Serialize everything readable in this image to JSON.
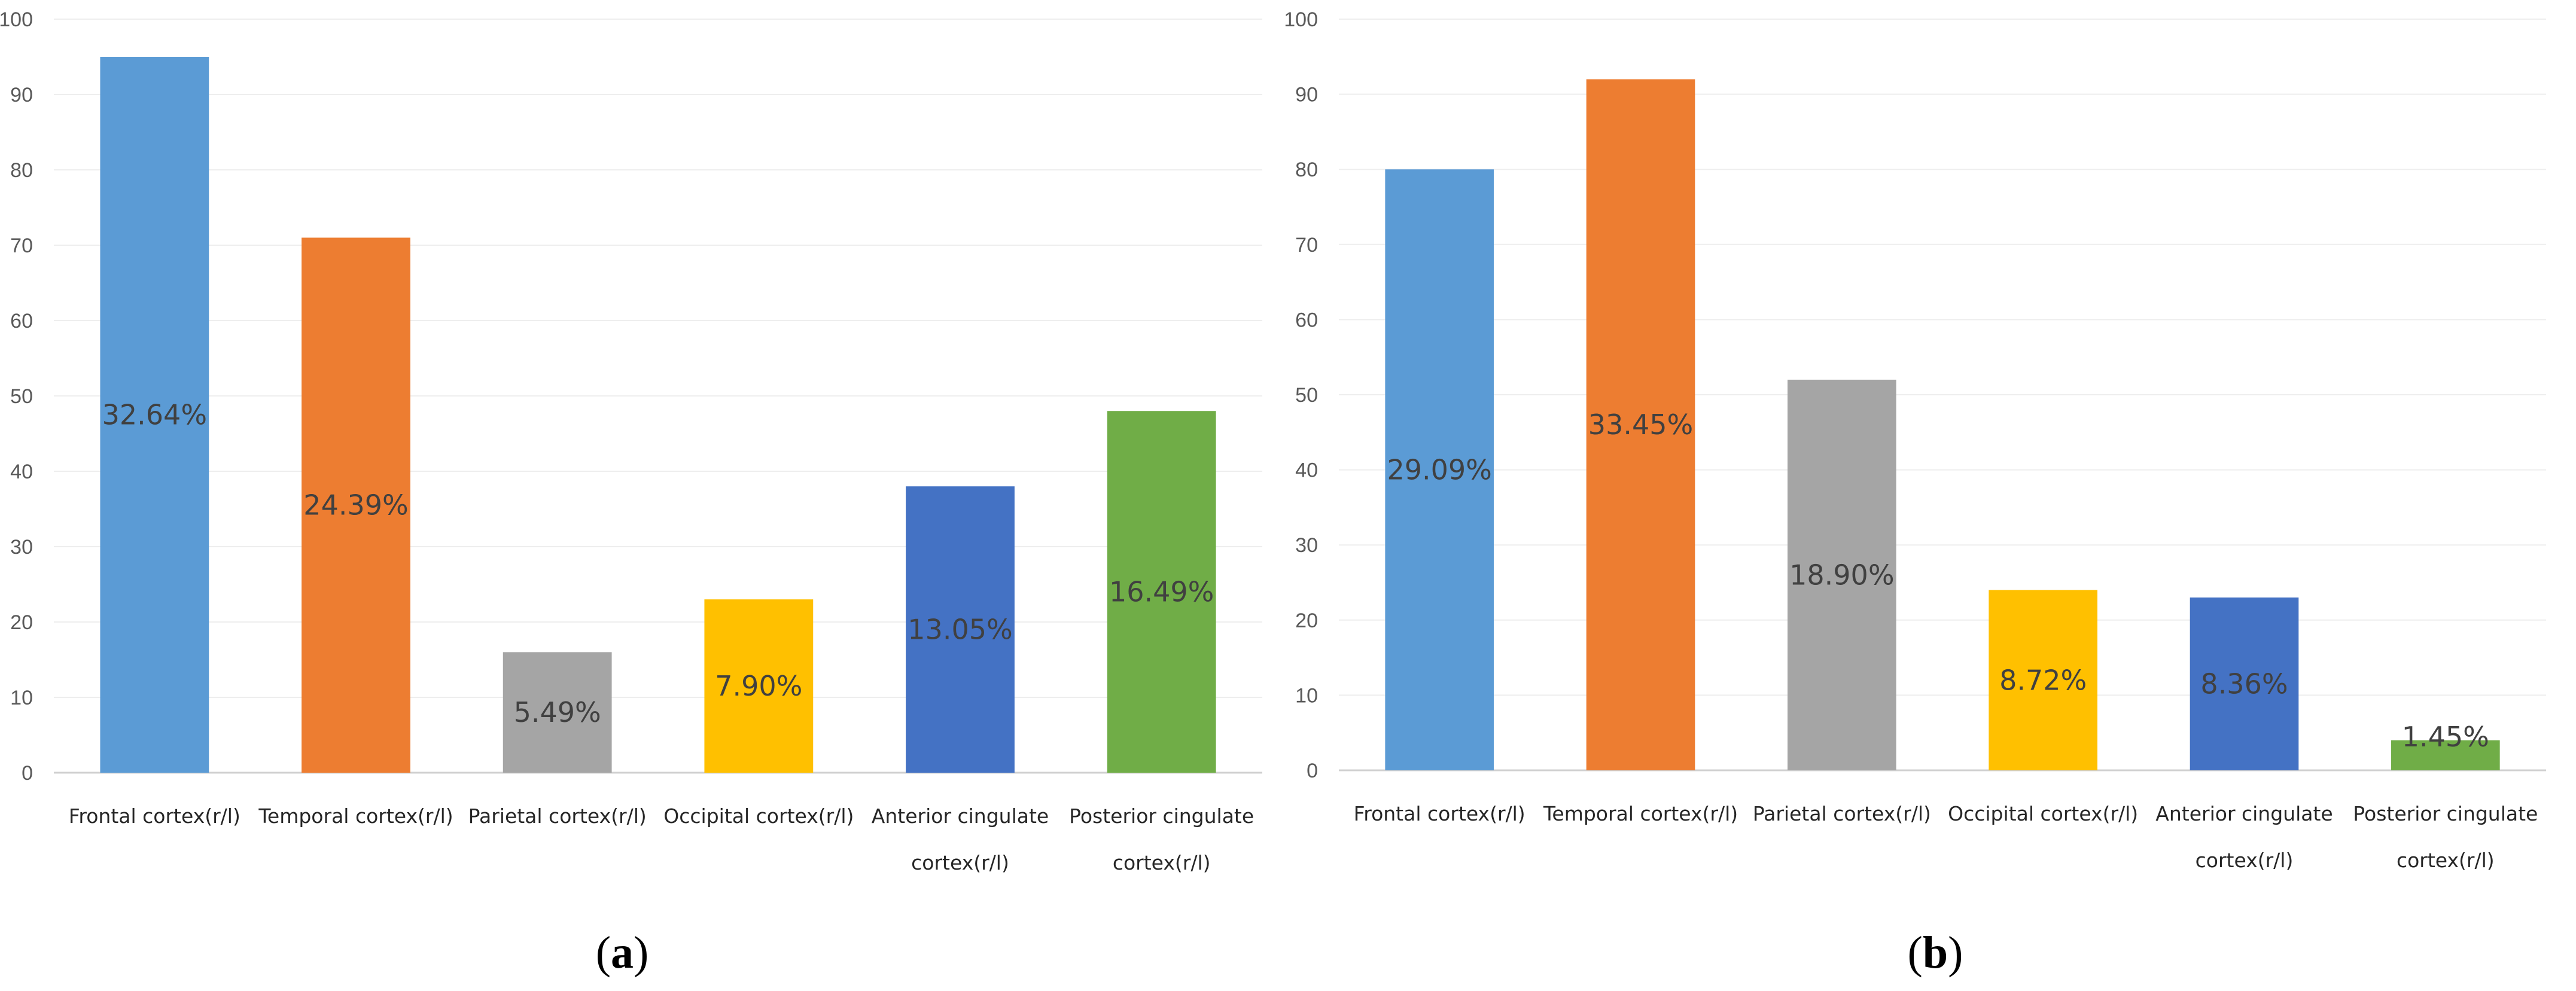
{
  "chart_data": [
    {
      "type": "bar",
      "panel_label": "a",
      "categories": [
        [
          "Frontal cortex(r/l)"
        ],
        [
          "Temporal cortex(r/l)"
        ],
        [
          "Parietal cortex(r/l)"
        ],
        [
          "Occipital cortex(r/l)"
        ],
        [
          "Anterior cingulate",
          "cortex(r/l)"
        ],
        [
          "Posterior cingulate",
          "cortex(r/l)"
        ]
      ],
      "values": [
        95,
        71,
        16,
        23,
        38,
        48
      ],
      "data_labels": [
        "32.64%",
        "24.39%",
        "5.49%",
        "7.90%",
        "13.05%",
        "16.49%"
      ],
      "colors": [
        "#5b9bd5",
        "#ed7d31",
        "#a5a5a5",
        "#ffc000",
        "#4472c4",
        "#70ad47"
      ],
      "ylim": [
        0,
        100
      ],
      "yticks": [
        0,
        10,
        20,
        30,
        40,
        50,
        60,
        70,
        80,
        90,
        100
      ],
      "grid": true,
      "title": "",
      "xlabel": "",
      "ylabel": ""
    },
    {
      "type": "bar",
      "panel_label": "b",
      "categories": [
        [
          "Frontal cortex(r/l)"
        ],
        [
          "Temporal cortex(r/l)"
        ],
        [
          "Parietal cortex(r/l)"
        ],
        [
          "Occipital cortex(r/l)"
        ],
        [
          "Anterior cingulate",
          "cortex(r/l)"
        ],
        [
          "Posterior cingulate",
          "cortex(r/l)"
        ]
      ],
      "values": [
        80,
        92,
        52,
        24,
        23,
        4
      ],
      "data_labels": [
        "29.09%",
        "33.45%",
        "18.90%",
        "8.72%",
        "8.36%",
        "1.45%"
      ],
      "colors": [
        "#5b9bd5",
        "#ed7d31",
        "#a5a5a5",
        "#ffc000",
        "#4472c4",
        "#70ad47"
      ],
      "ylim": [
        0,
        100
      ],
      "yticks": [
        0,
        10,
        20,
        30,
        40,
        50,
        60,
        70,
        80,
        90,
        100
      ],
      "grid": true,
      "title": "",
      "xlabel": "",
      "ylabel": ""
    }
  ]
}
